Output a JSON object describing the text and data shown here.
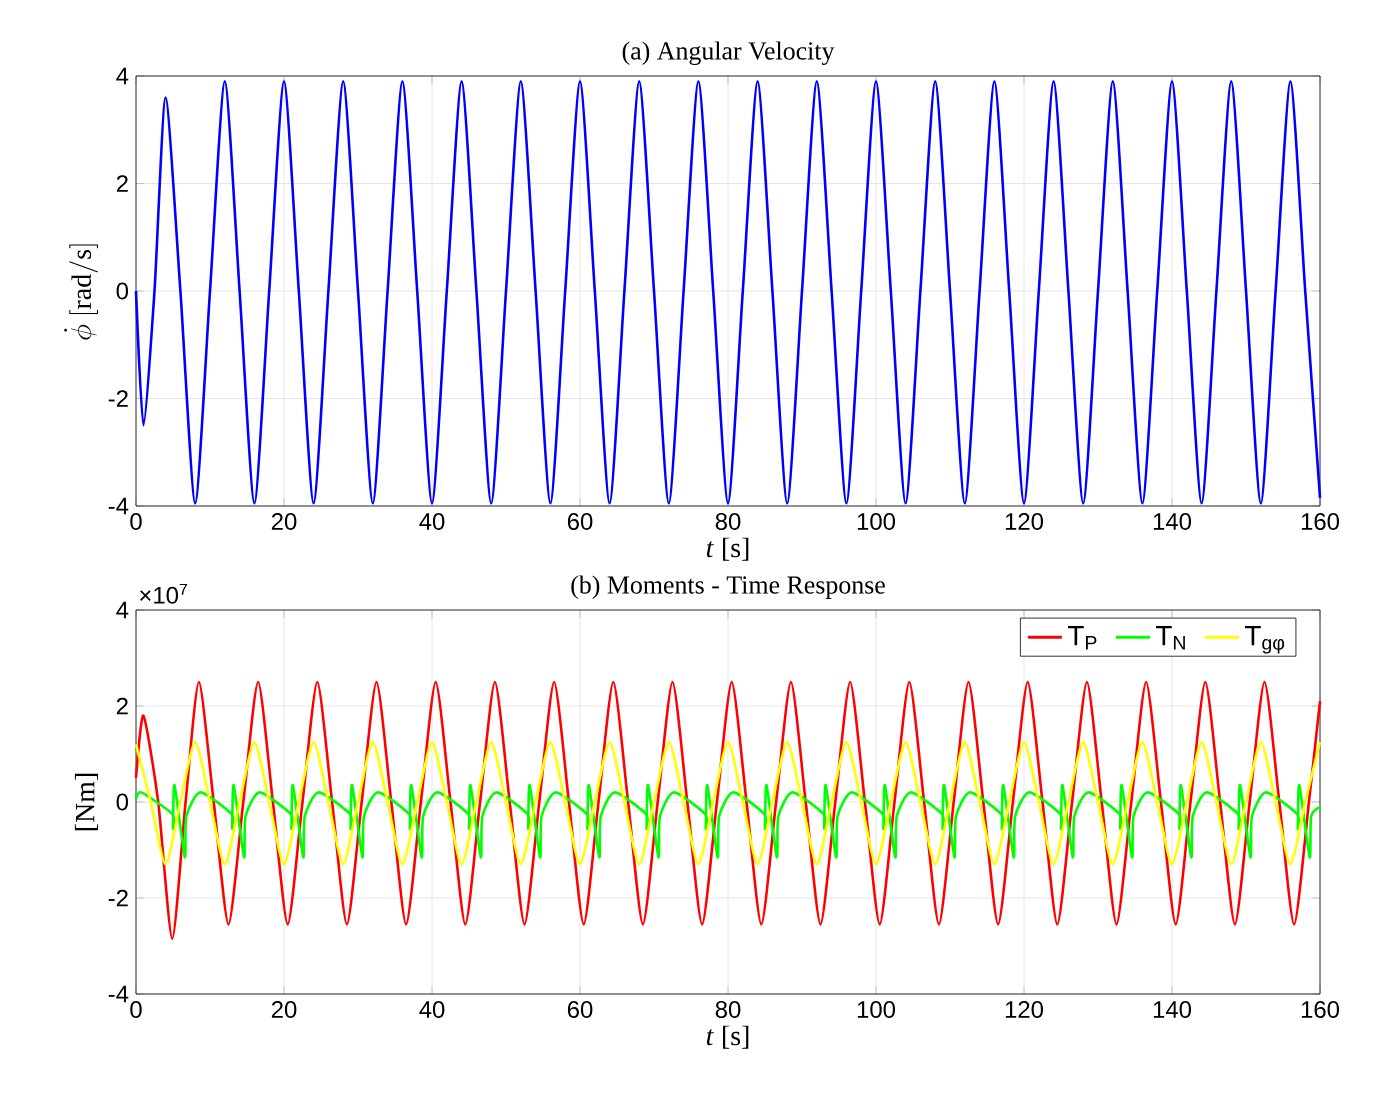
{
  "chart_data": [
    {
      "type": "line",
      "title": "(a) Angular Velocity",
      "xlabel": "*t* [s]",
      "ylabel": "\\dot{\\phi}\\ \\mathrm{[rad/s]}",
      "xlim": [
        0,
        160
      ],
      "xticks": [
        0,
        20,
        40,
        60,
        80,
        100,
        120,
        140,
        160
      ],
      "ylim": [
        -4,
        4
      ],
      "yticks": [
        -4,
        -2,
        0,
        2,
        4
      ],
      "grid": true,
      "series": [
        {
          "color": "#0000ff",
          "x": [
            0,
            1,
            2.5,
            4,
            6,
            8,
            10,
            12,
            14,
            16,
            18,
            20,
            22,
            24,
            26,
            28,
            30,
            32,
            34,
            36,
            38,
            40,
            42,
            44,
            46,
            48,
            50,
            52,
            54,
            56,
            58,
            60,
            62,
            64,
            66,
            68,
            70,
            72,
            74,
            76,
            78,
            80,
            82,
            84,
            86,
            88,
            90,
            92,
            94,
            96,
            98,
            100,
            102,
            104,
            106,
            108,
            110,
            112,
            114,
            116,
            118,
            120,
            122,
            124,
            126,
            128,
            130,
            132,
            134,
            136,
            138,
            140,
            142,
            144,
            146,
            148,
            150,
            152,
            154,
            156,
            158,
            160
          ],
          "values": [
            0,
            -2.5,
            0,
            3.6,
            0,
            -3.95,
            0,
            3.9,
            0,
            -3.95,
            0,
            3.9,
            0,
            -3.95,
            0,
            3.9,
            0,
            -3.95,
            0,
            3.9,
            0,
            -3.95,
            0,
            3.9,
            0,
            -3.95,
            0,
            3.9,
            0,
            -3.95,
            0,
            3.9,
            0,
            -3.95,
            0,
            3.9,
            0,
            -3.95,
            0,
            3.9,
            0,
            -3.95,
            0,
            3.9,
            0,
            -3.95,
            0,
            3.9,
            0,
            -3.95,
            0,
            3.9,
            0,
            -3.95,
            0,
            3.9,
            0,
            -3.95,
            0,
            3.9,
            0,
            -3.95,
            0,
            3.9,
            0,
            -3.95,
            0,
            3.9,
            0,
            -3.95,
            0,
            3.9,
            0,
            -3.95,
            0,
            3.9,
            0,
            -3.95,
            0,
            3.9,
            0,
            -3.85
          ]
        }
      ]
    },
    {
      "type": "line",
      "title": "(b) Moments - Time Response",
      "xlabel": "*t* [s]",
      "ylabel": "[Nm]",
      "annotations": [
        "×10$^{7}$"
      ],
      "xlim": [
        0,
        160
      ],
      "xticks": [
        0,
        20,
        40,
        60,
        80,
        100,
        120,
        140,
        160
      ],
      "ylim": [
        -4,
        4
      ],
      "yticks": [
        -4,
        -2,
        0,
        2,
        4
      ],
      "grid": true,
      "legend": "top right",
      "series": [
        {
          "name": "T$_{P}$",
          "color": "#ff0000",
          "x": [
            0,
            1,
            3,
            4.9,
            6.7,
            8.5,
            10.5,
            12.5,
            14.5,
            16.5,
            18.5,
            20.5,
            22.5,
            24.5,
            26.5,
            28.5,
            30.5,
            32.5,
            34.5,
            36.5,
            38.5,
            40.5,
            42.5,
            44.5,
            46.5,
            48.5,
            50.5,
            52.5,
            54.5,
            56.5,
            58.5,
            60.5,
            62.5,
            64.5,
            66.5,
            68.5,
            70.5,
            72.5,
            74.5,
            76.5,
            78.5,
            80.5,
            82.5,
            84.5,
            86.5,
            88.5,
            90.5,
            92.5,
            94.5,
            96.5,
            98.5,
            100.5,
            102.5,
            104.5,
            106.5,
            108.5,
            110.5,
            112.5,
            114.5,
            116.5,
            118.5,
            120.5,
            122.5,
            124.5,
            126.5,
            128.5,
            130.5,
            132.5,
            134.5,
            136.5,
            138.5,
            140.5,
            142.5,
            144.5,
            146.5,
            148.5,
            150.5,
            152.5,
            154.5,
            156.5,
            158.5,
            160
          ],
          "values": [
            0.5,
            1.8,
            0,
            -2.85,
            0,
            2.5,
            0,
            -2.55,
            0,
            2.5,
            0,
            -2.55,
            0,
            2.5,
            0,
            -2.55,
            0,
            2.5,
            0,
            -2.55,
            0,
            2.5,
            0,
            -2.55,
            0,
            2.5,
            0,
            -2.55,
            0,
            2.5,
            0,
            -2.55,
            0,
            2.5,
            0,
            -2.55,
            0,
            2.5,
            0,
            -2.55,
            0,
            2.5,
            0,
            -2.55,
            0,
            2.5,
            0,
            -2.55,
            0,
            2.5,
            0,
            -2.55,
            0,
            2.5,
            0,
            -2.55,
            0,
            2.5,
            0,
            -2.55,
            0,
            2.5,
            0,
            -2.55,
            0,
            2.5,
            0,
            -2.55,
            0,
            2.5,
            0,
            -2.55,
            0,
            2.5,
            0,
            -2.55,
            0,
            2.5,
            0,
            -2.55,
            0,
            2.1
          ]
        },
        {
          "name": "T$_{N}$",
          "color": "#00ff00",
          "x": [
            0,
            0.7,
            4.9,
            5,
            5.2,
            6.6,
            6.8,
            8.7,
            12.9,
            13,
            13.2,
            14.6,
            14.8,
            16.7,
            20.9,
            21,
            21.2,
            22.6,
            22.8,
            24.7,
            28.9,
            29,
            29.2,
            30.6,
            30.8,
            32.7,
            36.9,
            37,
            37.2,
            38.6,
            38.8,
            40.7,
            44.9,
            45,
            45.2,
            46.6,
            46.8,
            48.7,
            52.9,
            53,
            53.2,
            54.6,
            54.8,
            56.7,
            60.9,
            61,
            61.2,
            62.6,
            62.8,
            64.7,
            68.9,
            69,
            69.2,
            70.6,
            70.8,
            72.7,
            76.9,
            77,
            77.2,
            78.6,
            78.8,
            80.7,
            84.9,
            85,
            85.2,
            86.6,
            86.8,
            88.7,
            92.9,
            93,
            93.2,
            94.6,
            94.8,
            96.7,
            100.9,
            101,
            101.2,
            102.6,
            102.8,
            104.7,
            108.9,
            109,
            109.2,
            110.6,
            110.8,
            112.7,
            116.9,
            117,
            117.2,
            118.6,
            118.8,
            120.7,
            124.9,
            125,
            125.2,
            126.6,
            126.8,
            128.7,
            132.9,
            133,
            133.2,
            134.6,
            134.8,
            136.7,
            140.9,
            141,
            141.2,
            142.6,
            142.8,
            144.7,
            148.9,
            149,
            149.2,
            150.6,
            150.8,
            152.7,
            156.9,
            157,
            157.2,
            158.6,
            158.8,
            160
          ],
          "values": [
            0.05,
            0.2,
            -0.25,
            -0.55,
            0.35,
            -1.15,
            -0.3,
            0.2,
            -0.25,
            -0.55,
            0.35,
            -1.15,
            -0.3,
            0.2,
            -0.25,
            -0.55,
            0.35,
            -1.15,
            -0.3,
            0.2,
            -0.25,
            -0.55,
            0.35,
            -1.15,
            -0.3,
            0.2,
            -0.25,
            -0.55,
            0.35,
            -1.15,
            -0.3,
            0.2,
            -0.25,
            -0.55,
            0.35,
            -1.15,
            -0.3,
            0.2,
            -0.25,
            -0.55,
            0.35,
            -1.15,
            -0.3,
            0.2,
            -0.25,
            -0.55,
            0.35,
            -1.15,
            -0.3,
            0.2,
            -0.25,
            -0.55,
            0.35,
            -1.15,
            -0.3,
            0.2,
            -0.25,
            -0.55,
            0.35,
            -1.15,
            -0.3,
            0.2,
            -0.25,
            -0.55,
            0.35,
            -1.15,
            -0.3,
            0.2,
            -0.25,
            -0.55,
            0.35,
            -1.15,
            -0.3,
            0.2,
            -0.25,
            -0.55,
            0.35,
            -1.15,
            -0.3,
            0.2,
            -0.25,
            -0.55,
            0.35,
            -1.15,
            -0.3,
            0.2,
            -0.25,
            -0.55,
            0.35,
            -1.15,
            -0.3,
            0.2,
            -0.25,
            -0.55,
            0.35,
            -1.15,
            -0.3,
            0.2,
            -0.25,
            -0.55,
            0.35,
            -1.15,
            -0.3,
            0.2,
            -0.25,
            -0.55,
            0.35,
            -1.15,
            -0.3,
            0.2,
            -0.25,
            -0.55,
            0.35,
            -1.15,
            -0.3,
            0.2,
            -0.25,
            -0.55,
            0.35,
            -1.15,
            -0.3,
            -0.1
          ]
        },
        {
          "name": "T$_{gφ}$",
          "color": "#ffff00",
          "x": [
            0,
            2,
            4,
            6,
            8,
            10,
            12,
            14,
            16,
            18,
            20,
            22,
            24,
            26,
            28,
            30,
            32,
            34,
            36,
            38,
            40,
            42,
            44,
            46,
            48,
            50,
            52,
            54,
            56,
            58,
            60,
            62,
            64,
            66,
            68,
            70,
            72,
            74,
            76,
            78,
            80,
            82,
            84,
            86,
            88,
            90,
            92,
            94,
            96,
            98,
            100,
            102,
            104,
            106,
            108,
            110,
            112,
            114,
            116,
            118,
            120,
            122,
            124,
            126,
            128,
            130,
            132,
            134,
            136,
            138,
            140,
            142,
            144,
            146,
            148,
            150,
            152,
            154,
            156,
            158,
            160
          ],
          "values": [
            1.2,
            0,
            -1.3,
            0,
            1.25,
            0,
            -1.3,
            0,
            1.25,
            0,
            -1.3,
            0,
            1.25,
            0,
            -1.3,
            0,
            1.25,
            0,
            -1.3,
            0,
            1.25,
            0,
            -1.3,
            0,
            1.25,
            0,
            -1.3,
            0,
            1.25,
            0,
            -1.3,
            0,
            1.25,
            0,
            -1.3,
            0,
            1.25,
            0,
            -1.3,
            0,
            1.25,
            0,
            -1.3,
            0,
            1.25,
            0,
            -1.3,
            0,
            1.25,
            0,
            -1.3,
            0,
            1.25,
            0,
            -1.3,
            0,
            1.25,
            0,
            -1.3,
            0,
            1.25,
            0,
            -1.3,
            0,
            1.25,
            0,
            -1.3,
            0,
            1.25,
            0,
            -1.3,
            0,
            1.25,
            0,
            -1.3,
            0,
            1.25,
            0,
            -1.3,
            0,
            1.25
          ]
        }
      ]
    }
  ]
}
